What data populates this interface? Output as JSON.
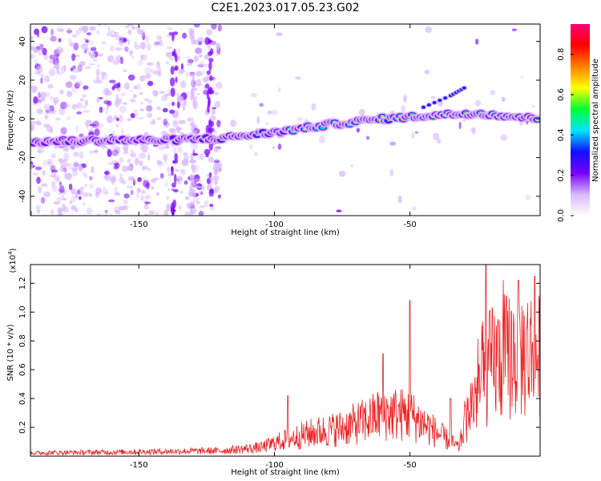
{
  "figure": {
    "title": "C2E1.2023.017.05.23.G02"
  },
  "chart_data": [
    {
      "type": "heatmap",
      "title": "C2E1.2023.017.05.23.G02",
      "xlabel": "Height of straight line (km)",
      "ylabel": "Frequency (Hz)",
      "xlim": [
        -190,
        -2
      ],
      "ylim": [
        -50,
        49
      ],
      "x_ticks": [
        -150,
        -100,
        -50
      ],
      "y_ticks": [
        -40,
        -20,
        0,
        20,
        40
      ],
      "grid": false,
      "colorbar": {
        "label": "Normalized spectral amplitude",
        "range": [
          0,
          0.95
        ],
        "ticks": [
          "0.0",
          "0.2",
          "0.4",
          "0.6",
          "0.8"
        ],
        "colormap": [
          "#ffffff",
          "#d8b8ff",
          "#7700ff",
          "#1010ff",
          "#00e5ff",
          "#00ff30",
          "#ffff00",
          "#ff8000",
          "#ff0000",
          "#ff0077"
        ]
      },
      "ridge": {
        "description_points": [
          {
            "x": -190,
            "y": -12
          },
          {
            "x": -160,
            "y": -11
          },
          {
            "x": -140,
            "y": -11
          },
          {
            "x": -120,
            "y": -10
          },
          {
            "x": -100,
            "y": -7
          },
          {
            "x": -80,
            "y": -3
          },
          {
            "x": -60,
            "y": 0
          },
          {
            "x": -40,
            "y": 2
          },
          {
            "x": -25,
            "y": 3
          },
          {
            "x": -10,
            "y": 1
          },
          {
            "x": -2,
            "y": 0
          }
        ],
        "branch": [
          {
            "x": -45,
            "y": 6
          },
          {
            "x": -35,
            "y": 12
          },
          {
            "x": -30,
            "y": 16
          }
        ]
      }
    },
    {
      "type": "line",
      "xlabel": "Height of straight line (km)",
      "ylabel": "SNR (10 * v/v)",
      "y_multiplier": "(x10",
      "y_multiplier_exp": "4",
      "y_multiplier_close": ")",
      "xlim": [
        -190,
        -2
      ],
      "ylim": [
        0,
        1.33
      ],
      "x_ticks": [
        -150,
        -100,
        -50
      ],
      "y_ticks": [
        "0.2",
        "0.4",
        "0.6",
        "0.8",
        "1.0",
        "1.2"
      ],
      "grid": false,
      "series": [
        {
          "color": "#ee2222",
          "envelope": [
            {
              "x": -190,
              "y": 0.03
            },
            {
              "x": -150,
              "y": 0.04
            },
            {
              "x": -120,
              "y": 0.05
            },
            {
              "x": -105,
              "y": 0.08
            },
            {
              "x": -95,
              "y": 0.16
            },
            {
              "x": -85,
              "y": 0.22
            },
            {
              "x": -75,
              "y": 0.26
            },
            {
              "x": -65,
              "y": 0.34
            },
            {
              "x": -60,
              "y": 0.4
            },
            {
              "x": -50,
              "y": 0.38
            },
            {
              "x": -45,
              "y": 0.3
            },
            {
              "x": -32,
              "y": 0.08
            },
            {
              "x": -28,
              "y": 0.45
            },
            {
              "x": -20,
              "y": 0.85
            },
            {
              "x": -12,
              "y": 0.95
            },
            {
              "x": -5,
              "y": 0.95
            },
            {
              "x": -2,
              "y": 0.9
            }
          ],
          "peaks": [
            {
              "x": -95,
              "y": 0.42
            },
            {
              "x": -60,
              "y": 0.71
            },
            {
              "x": -50,
              "y": 1.08
            },
            {
              "x": -35,
              "y": 0.4
            },
            {
              "x": -22,
              "y": 1.33
            },
            {
              "x": -10,
              "y": 1.22
            },
            {
              "x": -4,
              "y": 1.25
            }
          ]
        }
      ]
    }
  ]
}
